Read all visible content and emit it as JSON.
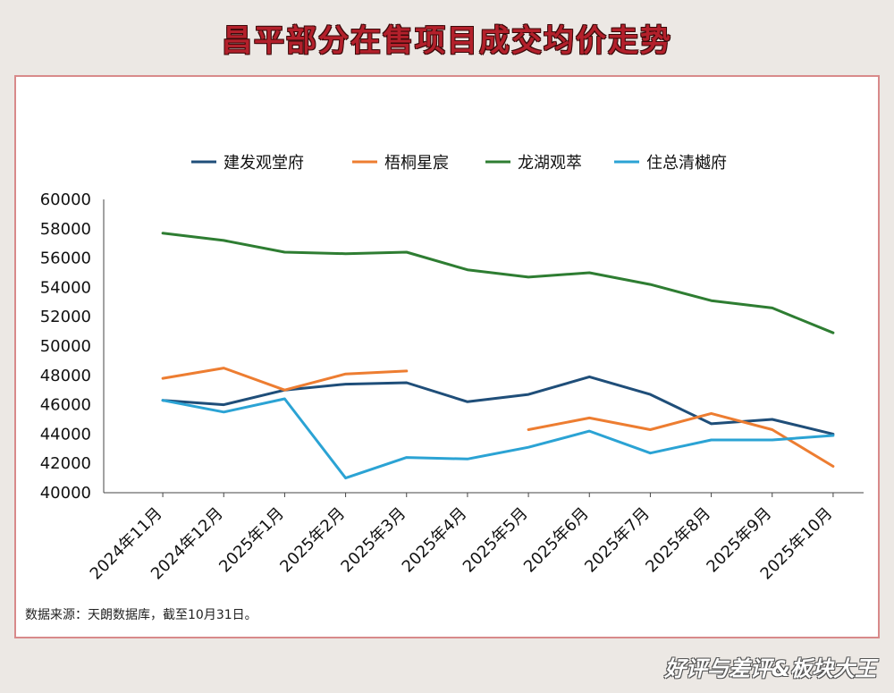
{
  "page": {
    "title": "昌平部分在售项目成交均价走势",
    "source_note": "数据来源：天朗数据库，截至10月31日。",
    "brand": "好评与差评&板块大王"
  },
  "chart_data": {
    "type": "line",
    "title": "昌平部分在售项目成交均价走势",
    "xlabel": "",
    "ylabel": "",
    "ylim": [
      40000,
      60000
    ],
    "yticks": [
      40000,
      42000,
      44000,
      46000,
      48000,
      50000,
      52000,
      54000,
      56000,
      58000,
      60000
    ],
    "categories": [
      "2024年11月",
      "2024年12月",
      "2025年1月",
      "2025年2月",
      "2025年3月",
      "2025年4月",
      "2025年5月",
      "2025年6月",
      "2025年7月",
      "2025年8月",
      "2025年9月",
      "2025年10月"
    ],
    "grid": false,
    "legend_position": "top",
    "series": [
      {
        "name": "建发观堂府",
        "color": "#1f4e79",
        "values": [
          46300,
          46000,
          47000,
          47400,
          47500,
          46200,
          46700,
          47900,
          46700,
          44700,
          45000,
          44000
        ]
      },
      {
        "name": "梧桐星宸",
        "color": "#ed7d31",
        "values": [
          47800,
          48500,
          47000,
          48100,
          48300,
          null,
          44300,
          45100,
          44300,
          45400,
          44300,
          41800
        ]
      },
      {
        "name": "龙湖观萃",
        "color": "#2e7d32",
        "values": [
          57700,
          57200,
          56400,
          56300,
          56400,
          55200,
          54700,
          55000,
          54200,
          53100,
          52600,
          50900
        ]
      },
      {
        "name": "住总清樾府",
        "color": "#2ba3d4",
        "values": [
          46300,
          45500,
          46400,
          41000,
          42400,
          42300,
          43100,
          44200,
          42700,
          43600,
          43600,
          43900
        ]
      }
    ]
  }
}
